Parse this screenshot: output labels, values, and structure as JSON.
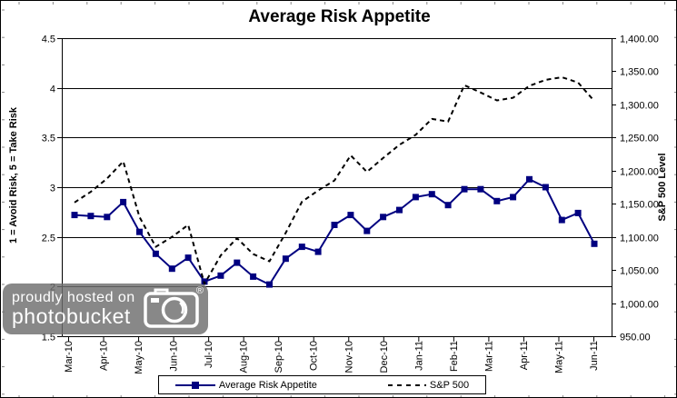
{
  "watermark": {
    "line1": "proudly hosted on",
    "line2": "photobucket",
    "registered": "®"
  },
  "chart_data": {
    "type": "line",
    "title": "Average Risk Appetite",
    "categories": [
      "Mar-10",
      "Apr-10",
      "May-10",
      "Jun-10",
      "Jul-10",
      "Aug-10",
      "Sep-10",
      "Oct-10",
      "Nov-10",
      "Dec-10",
      "Jan-11",
      "Feb-11",
      "Mar-11",
      "Apr-11",
      "May-11",
      "Jun-11"
    ],
    "points_per_month": 2,
    "left_axis": {
      "label": "1 = Avoid Risk, 5 = Take Risk",
      "min": 1.5,
      "max": 4.5,
      "step": 0.5,
      "tick_labels": [
        "4.5",
        "4",
        "3.5",
        "3",
        "2.5",
        "2",
        "1.5"
      ]
    },
    "right_axis": {
      "label": "S&P 500 Level",
      "min": 950,
      "max": 1400,
      "step": 50,
      "tick_labels": [
        "1,400.00",
        "1,350.00",
        "1,300.00",
        "1,250.00",
        "1,200.00",
        "1,150.00",
        "1,100.00",
        "1,050.00",
        "1,000.00",
        "950.00"
      ]
    },
    "grid": "horizontal",
    "legend_position": "bottom",
    "series": [
      {
        "name": "Average Risk Appetite",
        "axis": "left",
        "color": "#000080",
        "style": "solid",
        "marker": "square",
        "values": [
          2.72,
          2.71,
          2.7,
          2.85,
          2.55,
          2.33,
          2.18,
          2.29,
          2.05,
          2.11,
          2.24,
          2.1,
          2.02,
          2.28,
          2.4,
          2.35,
          2.62,
          2.72,
          2.56,
          2.7,
          2.77,
          2.9,
          2.93,
          2.82,
          2.98,
          2.98,
          2.86,
          2.9,
          3.08,
          3.0,
          2.67,
          2.74,
          2.43
        ]
      },
      {
        "name": "S&P 500",
        "axis": "right",
        "color": "#000000",
        "style": "dashed",
        "marker": "none",
        "values": [
          1152,
          1168,
          1188,
          1214,
          1130,
          1085,
          1100,
          1118,
          1029,
          1072,
          1098,
          1074,
          1063,
          1106,
          1153,
          1170,
          1185,
          1223,
          1198,
          1219,
          1239,
          1254,
          1278,
          1274,
          1329,
          1318,
          1306,
          1310,
          1328,
          1337,
          1341,
          1333,
          1305
        ]
      }
    ]
  }
}
